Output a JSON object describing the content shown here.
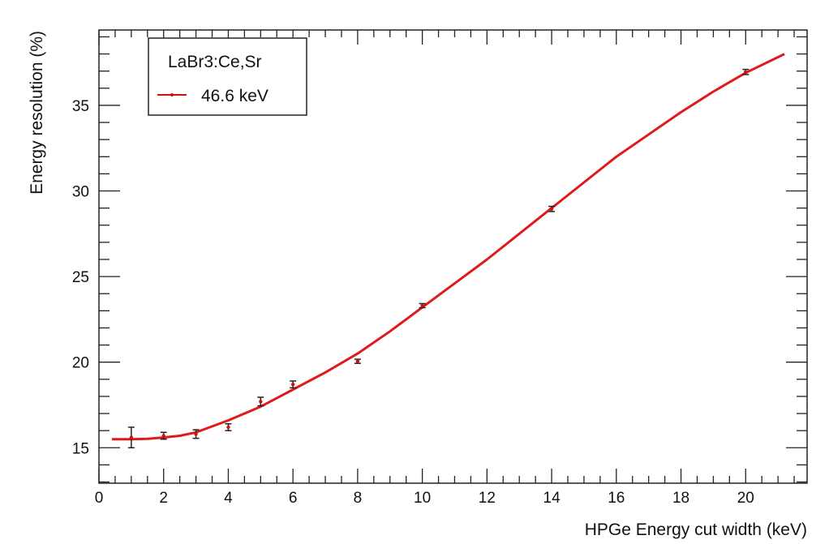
{
  "chart_data": {
    "type": "line",
    "title": "",
    "xlabel": "HPGe Energy cut width (keV)",
    "ylabel": "Energy resolution (%)",
    "xlim": [
      0,
      21.9
    ],
    "ylim": [
      12.93,
      39.4
    ],
    "x_ticks": [
      0,
      2,
      4,
      6,
      8,
      10,
      12,
      14,
      16,
      18,
      20
    ],
    "y_ticks": [
      15,
      20,
      25,
      30,
      35
    ],
    "grid": false,
    "legend": {
      "placement": "top-left",
      "header": "LaBr3:Ce,Sr",
      "entries": [
        "46.6 keV"
      ]
    },
    "series": [
      {
        "name": "46.6 keV",
        "kind": "points-with-errors",
        "color": "#d01010",
        "x": [
          1,
          2,
          3,
          4,
          5,
          6,
          8,
          10,
          14,
          20
        ],
        "y": [
          15.6,
          15.7,
          15.8,
          16.2,
          17.7,
          18.7,
          20.05,
          23.3,
          28.95,
          36.95
        ],
        "yerr": [
          0.6,
          0.2,
          0.25,
          0.2,
          0.25,
          0.2,
          0.12,
          0.12,
          0.15,
          0.15
        ]
      },
      {
        "kind": "fit-curve",
        "color": "#e01a1a",
        "x": [
          0.4,
          1,
          1.5,
          2,
          2.5,
          3,
          4,
          5,
          6,
          7,
          8,
          9,
          10,
          11,
          12,
          13,
          14,
          15,
          16,
          17,
          18,
          19,
          20,
          21.2
        ],
        "y": [
          15.5,
          15.5,
          15.52,
          15.6,
          15.7,
          15.9,
          16.6,
          17.4,
          18.4,
          19.4,
          20.5,
          21.8,
          23.2,
          24.6,
          26.0,
          27.5,
          29.0,
          30.5,
          32.0,
          33.3,
          34.6,
          35.8,
          36.9,
          38.0
        ]
      }
    ]
  }
}
